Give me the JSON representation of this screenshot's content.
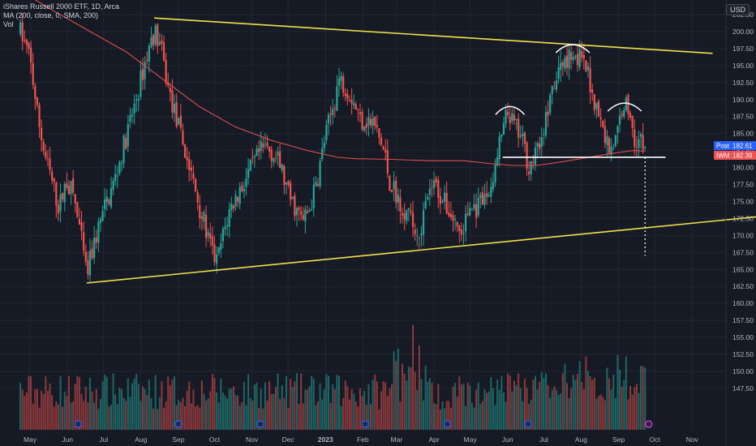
{
  "legend": {
    "title": "iShares Russell 2000 ETF, 1D, Arca",
    "ma": "MA (200, close, 0, SMA, 200)",
    "vol": "Vol"
  },
  "currency": "USD",
  "colors": {
    "background": "#161a25",
    "up": "#26a69a",
    "down": "#ef5350",
    "ma": "#e0504f",
    "trendline": "#f0e24a",
    "neckline": "#ffffff",
    "grid": "#222633",
    "post_tag": "#2962ff",
    "ma_tag": "#f05252"
  },
  "chart_data": {
    "type": "candlestick",
    "y_ticks": [
      "205.00",
      "202.50",
      "200.00",
      "197.50",
      "195.00",
      "192.50",
      "190.00",
      "187.50",
      "185.00",
      "182.50",
      "180.00",
      "177.50",
      "175.00",
      "172.50",
      "170.00",
      "167.50",
      "165.00",
      "162.50",
      "160.00",
      "157.50",
      "155.00",
      "152.50",
      "150.00",
      "147.50"
    ],
    "ylim": [
      146.0,
      207.0
    ],
    "x_ticks": [
      {
        "label": "May",
        "day": 0
      },
      {
        "label": "Jun",
        "day": 31
      },
      {
        "label": "Jul",
        "day": 61
      },
      {
        "label": "Aug",
        "day": 92
      },
      {
        "label": "Sep",
        "day": 123
      },
      {
        "label": "Oct",
        "day": 153
      },
      {
        "label": "Nov",
        "day": 184
      },
      {
        "label": "Dec",
        "day": 214
      },
      {
        "label": "2023",
        "day": 245
      },
      {
        "label": "Feb",
        "day": 276
      },
      {
        "label": "Mar",
        "day": 304
      },
      {
        "label": "Apr",
        "day": 335
      },
      {
        "label": "May",
        "day": 365
      },
      {
        "label": "Jun",
        "day": 396
      },
      {
        "label": "Jul",
        "day": 426
      },
      {
        "label": "Aug",
        "day": 457
      },
      {
        "label": "Sep",
        "day": 488
      },
      {
        "label": "Oct",
        "day": 518
      },
      {
        "label": "Nov",
        "day": 549
      }
    ],
    "price_path": [
      [
        -8,
        200
      ],
      [
        0,
        196
      ],
      [
        6,
        188
      ],
      [
        12,
        182
      ],
      [
        18,
        178
      ],
      [
        24,
        174
      ],
      [
        30,
        178
      ],
      [
        36,
        176
      ],
      [
        42,
        170
      ],
      [
        47,
        164
      ],
      [
        52,
        168
      ],
      [
        58,
        172
      ],
      [
        64,
        175
      ],
      [
        70,
        178
      ],
      [
        76,
        182
      ],
      [
        82,
        186
      ],
      [
        88,
        190
      ],
      [
        96,
        196
      ],
      [
        103,
        200
      ],
      [
        108,
        198
      ],
      [
        114,
        192
      ],
      [
        120,
        188
      ],
      [
        126,
        184
      ],
      [
        132,
        180
      ],
      [
        138,
        176
      ],
      [
        144,
        172
      ],
      [
        150,
        168
      ],
      [
        155,
        166
      ],
      [
        160,
        170
      ],
      [
        166,
        174
      ],
      [
        172,
        176
      ],
      [
        178,
        178
      ],
      [
        184,
        180
      ],
      [
        190,
        182
      ],
      [
        196,
        183
      ],
      [
        202,
        182
      ],
      [
        208,
        180
      ],
      [
        214,
        176
      ],
      [
        220,
        174
      ],
      [
        226,
        172
      ],
      [
        232,
        174
      ],
      [
        238,
        178
      ],
      [
        244,
        184
      ],
      [
        250,
        188
      ],
      [
        256,
        193
      ],
      [
        262,
        192
      ],
      [
        268,
        190
      ],
      [
        274,
        187
      ],
      [
        280,
        187
      ],
      [
        286,
        186
      ],
      [
        290,
        184
      ],
      [
        294,
        182
      ],
      [
        298,
        178
      ],
      [
        304,
        176
      ],
      [
        310,
        174
      ],
      [
        316,
        172
      ],
      [
        322,
        170
      ],
      [
        328,
        174
      ],
      [
        334,
        178
      ],
      [
        340,
        176
      ],
      [
        346,
        174
      ],
      [
        352,
        172
      ],
      [
        358,
        170
      ],
      [
        364,
        174
      ],
      [
        372,
        174
      ],
      [
        380,
        176
      ],
      [
        386,
        180
      ],
      [
        390,
        184
      ],
      [
        396,
        188
      ],
      [
        402,
        186
      ],
      [
        408,
        184
      ],
      [
        414,
        180
      ],
      [
        420,
        182
      ],
      [
        426,
        186
      ],
      [
        432,
        190
      ],
      [
        438,
        194
      ],
      [
        444,
        196
      ],
      [
        450,
        197
      ],
      [
        456,
        196
      ],
      [
        462,
        194
      ],
      [
        468,
        190
      ],
      [
        474,
        186
      ],
      [
        480,
        183
      ],
      [
        486,
        184
      ],
      [
        492,
        190
      ],
      [
        497,
        188
      ],
      [
        502,
        184
      ],
      [
        506,
        184
      ],
      [
        510,
        182.6
      ]
    ],
    "candle_step_days": 1.75,
    "series": [
      {
        "name": "MA (200, close, 0, SMA, 200)",
        "points": [
          [
            -8,
            206
          ],
          [
            20,
            203
          ],
          [
            50,
            200
          ],
          [
            80,
            197
          ],
          [
            110,
            193
          ],
          [
            140,
            189
          ],
          [
            170,
            186
          ],
          [
            200,
            184
          ],
          [
            230,
            182.5
          ],
          [
            255,
            181.5
          ],
          [
            270,
            181.3
          ],
          [
            300,
            181.2
          ],
          [
            330,
            181.0
          ],
          [
            360,
            181.0
          ],
          [
            380,
            180.6
          ],
          [
            400,
            180.3
          ],
          [
            420,
            180.3
          ],
          [
            440,
            180.8
          ],
          [
            460,
            181.4
          ],
          [
            480,
            182.0
          ],
          [
            500,
            182.5
          ],
          [
            510,
            182.4
          ]
        ]
      }
    ],
    "annotations": {
      "trendline_upper": [
        [
          103,
          202.0
        ],
        [
          566,
          196.8
        ]
      ],
      "trendline_lower": [
        [
          47,
          163.0
        ],
        [
          606,
          172.8
        ]
      ],
      "neckline": [
        [
          392,
          181.5
        ],
        [
          527,
          181.5
        ]
      ],
      "target_dotted": [
        [
          510,
          181.5
        ],
        [
          510,
          167.0
        ]
      ],
      "shoulders": [
        {
          "day": 398,
          "price": 188.5,
          "rx": 12
        },
        {
          "day": 450,
          "price": 197.6,
          "rx": 14
        },
        {
          "day": 493,
          "price": 189.0,
          "rx": 14
        }
      ]
    },
    "price_tags": [
      {
        "label": "Post",
        "value": "182.61",
        "price": 182.61
      },
      {
        "label": "IWM",
        "value": "182.39",
        "price": 182.39
      }
    ],
    "volume_events_days": [
      40,
      123,
      191,
      278,
      346,
      413,
      513
    ]
  }
}
